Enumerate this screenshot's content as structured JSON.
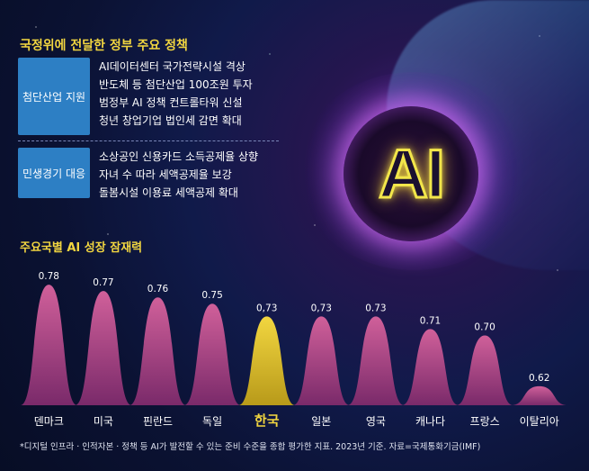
{
  "policy": {
    "title": "국정위에 전달한 정부 주요 정책",
    "groups": [
      {
        "category": "첨단산업 지원",
        "items": [
          "AI데이터센터 국가전략시설 격상",
          "반도체 등 첨단산업 100조원 투자",
          "범정부 AI 정책 컨트롤타워 신설",
          "청년 창업기업 법인세 감면 확대"
        ]
      },
      {
        "category": "민생경기 대응",
        "items": [
          "소상공인 신용카드 소득공제율 상향",
          "자녀 수 따라 세액공제율 보강",
          "돌봄시설 이용료 세액공제 확대"
        ]
      }
    ]
  },
  "orb_label": "AI",
  "chart_data": {
    "type": "bar",
    "title": "주요국별 AI 성장 잠재력",
    "categories": [
      "덴마크",
      "미국",
      "핀란드",
      "독일",
      "한국",
      "일본",
      "영국",
      "캐나다",
      "프랑스",
      "이탈리아"
    ],
    "values": [
      0.78,
      0.77,
      0.76,
      0.75,
      0.73,
      0.73,
      0.73,
      0.71,
      0.7,
      0.62
    ],
    "value_labels": [
      "0.78",
      "0.77",
      "0.76",
      "0.75",
      "0,73",
      "0,73",
      "0.73",
      "0.71",
      "0.70",
      "0.62"
    ],
    "highlight": "한국",
    "colors": {
      "bar": "#b4497f",
      "highlight": "#e6c82e",
      "label": "#ffffff",
      "highlight_label": "#f2d640"
    },
    "ylim": [
      0.59,
      0.8
    ]
  },
  "footnote": "*디지털 인프라 · 인적자본 · 정책 등 AI가 발전할 수 있는 준비 수준을 종합 평가한 지표. 2023년 기준. 자료=국제통화기금(IMF)"
}
